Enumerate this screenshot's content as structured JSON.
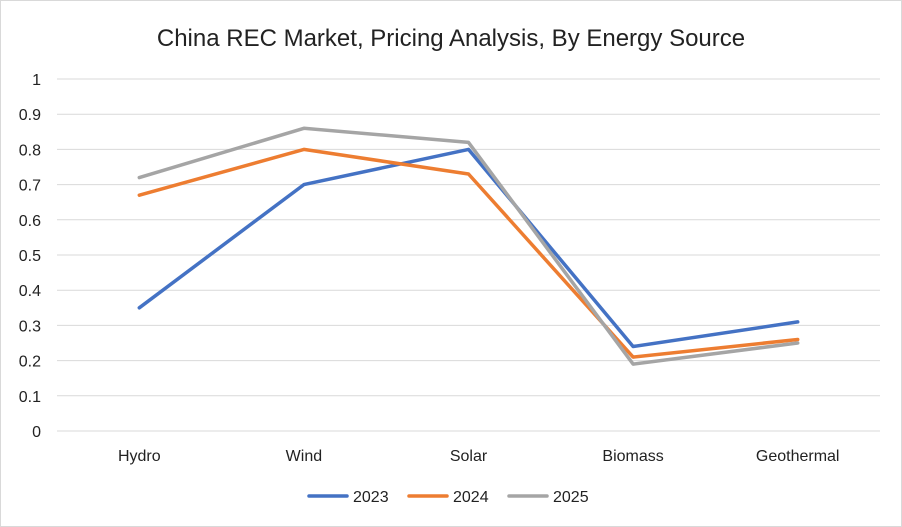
{
  "chart_data": {
    "type": "line",
    "title": "China REC Market, Pricing Analysis, By Energy Source",
    "categories": [
      "Hydro",
      "Wind",
      "Solar",
      "Biomass",
      "Geothermal"
    ],
    "ylim": [
      0,
      1
    ],
    "yticks": [
      "0",
      "0.1",
      "0.2",
      "0.3",
      "0.4",
      "0.5",
      "0.6",
      "0.7",
      "0.8",
      "0.9",
      "1"
    ],
    "grid": true,
    "legend": "bottom",
    "series": [
      {
        "name": "2023",
        "color": "#4472C4",
        "values": [
          0.35,
          0.7,
          0.8,
          0.24,
          0.31
        ]
      },
      {
        "name": "2024",
        "color": "#ED7D31",
        "values": [
          0.67,
          0.8,
          0.73,
          0.21,
          0.26
        ]
      },
      {
        "name": "2025",
        "color": "#A5A5A5",
        "values": [
          0.72,
          0.86,
          0.82,
          0.19,
          0.25
        ]
      }
    ]
  }
}
